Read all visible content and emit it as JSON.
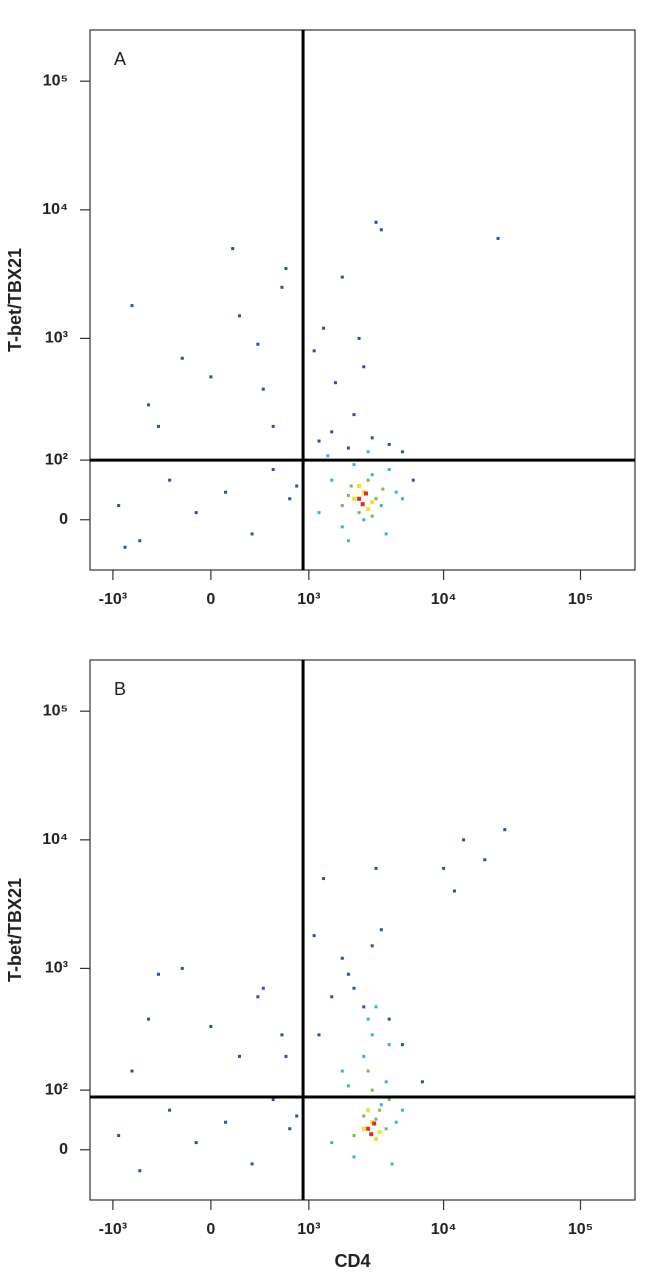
{
  "chart_data": [
    {
      "type": "scatter",
      "panel_label": "A",
      "y_label": "T-bet/TBX21",
      "xlim": [
        -1500,
        250000
      ],
      "ylim": [
        -80,
        250000
      ],
      "xticks": [
        {
          "value": -1000,
          "label": "-10³"
        },
        0,
        {
          "value": 1000,
          "label": "10³"
        },
        {
          "value": 10000,
          "label": "10⁴"
        },
        {
          "value": 100000,
          "label": "10⁵"
        }
      ],
      "yticks": [
        0,
        {
          "value": 100,
          "label": "10²"
        },
        {
          "value": 1000,
          "label": "10³"
        },
        {
          "value": 10000,
          "label": "10⁴"
        },
        {
          "value": 100000,
          "label": "10⁵"
        }
      ],
      "quadrant_gates": {
        "x": 900,
        "y": 100
      },
      "series": [
        {
          "color": "#2a4ea6",
          "x": [
            -900,
            -600,
            -300,
            -100,
            100,
            300,
            500,
            700,
            800,
            1200,
            1500,
            2000,
            3000,
            4000,
            5000,
            6000,
            -500,
            -200,
            200,
            400,
            600,
            1100,
            1800,
            2600,
            3500,
            -700,
            -400,
            0,
            350,
            650,
            1300,
            2200,
            3200,
            -800,
            150,
            500,
            1600,
            2400,
            25000
          ],
          "y": [
            20,
            -30,
            60,
            10,
            40,
            -20,
            80,
            30,
            50,
            150,
            180,
            130,
            160,
            140,
            120,
            60,
            300,
            700,
            1500,
            400,
            2500,
            800,
            3000,
            600,
            7000,
            1800,
            200,
            500,
            900,
            3500,
            1200,
            250,
            8000,
            -40,
            5000,
            200,
            450,
            1000,
            6000
          ]
        },
        {
          "color": "#2fb6d9",
          "x": [
            1200,
            1500,
            1800,
            2200,
            2600,
            3000,
            3500,
            4000,
            4500,
            1400,
            2000,
            2800,
            3800,
            5000
          ],
          "y": [
            10,
            60,
            -10,
            90,
            0,
            70,
            20,
            80,
            40,
            110,
            -30,
            120,
            -20,
            30
          ]
        },
        {
          "color": "#6cc04a",
          "x": [
            1800,
            2100,
            2400,
            2800,
            3200,
            3600,
            2000,
            3000
          ],
          "y": [
            20,
            50,
            10,
            60,
            30,
            45,
            35,
            5
          ]
        },
        {
          "color": "#f2e02a",
          "x": [
            2200,
            2600,
            3000,
            2400,
            2800
          ],
          "y": [
            30,
            40,
            25,
            50,
            15
          ]
        },
        {
          "color": "#e8281e",
          "x": [
            2400,
            2700,
            2550
          ],
          "y": [
            30,
            38,
            22
          ]
        }
      ]
    },
    {
      "type": "scatter",
      "panel_label": "B",
      "y_label": "T-bet/TBX21",
      "x_label": "CD4",
      "xlim": [
        -1500,
        250000
      ],
      "ylim": [
        -80,
        250000
      ],
      "xticks": [
        {
          "value": -1000,
          "label": "-10³"
        },
        0,
        {
          "value": 1000,
          "label": "10³"
        },
        {
          "value": 10000,
          "label": "10⁴"
        },
        {
          "value": 100000,
          "label": "10⁵"
        }
      ],
      "yticks": [
        0,
        {
          "value": 100,
          "label": "10²"
        },
        {
          "value": 1000,
          "label": "10³"
        },
        {
          "value": 10000,
          "label": "10⁴"
        },
        {
          "value": 100000,
          "label": "10⁵"
        }
      ],
      "quadrant_gates": {
        "x": 900,
        "y": 85
      },
      "series": [
        {
          "color": "#2a4ea6",
          "x": [
            -900,
            -600,
            -300,
            -100,
            100,
            300,
            500,
            700,
            800,
            1200,
            1500,
            2000,
            3000,
            4000,
            5000,
            7000,
            -500,
            -200,
            200,
            400,
            600,
            1100,
            1800,
            2600,
            3500,
            -700,
            -400,
            0,
            350,
            650,
            1300,
            2200,
            3200,
            10000,
            12000,
            14000,
            20000,
            28000
          ],
          "y": [
            20,
            -30,
            60,
            10,
            40,
            -20,
            80,
            30,
            50,
            300,
            600,
            900,
            1500,
            400,
            250,
            120,
            400,
            1000,
            200,
            700,
            300,
            1800,
            1200,
            500,
            2000,
            150,
            900,
            350,
            600,
            200,
            5000,
            700,
            6000,
            6000,
            4000,
            10000,
            7000,
            12000
          ]
        },
        {
          "color": "#2fb6d9",
          "x": [
            1500,
            1800,
            2200,
            2600,
            3000,
            3500,
            4000,
            4500,
            2000,
            2800,
            3800,
            5000,
            3200,
            4200
          ],
          "y": [
            10,
            150,
            -10,
            200,
            300,
            70,
            250,
            40,
            110,
            400,
            120,
            60,
            500,
            -20
          ]
        },
        {
          "color": "#6cc04a",
          "x": [
            2200,
            2600,
            3000,
            3400,
            3800,
            2800,
            3200,
            4000
          ],
          "y": [
            20,
            50,
            100,
            60,
            30,
            150,
            45,
            80
          ]
        },
        {
          "color": "#f2e02a",
          "x": [
            2600,
            3000,
            3400,
            2800,
            3200
          ],
          "y": [
            30,
            40,
            25,
            60,
            15
          ]
        },
        {
          "color": "#e8281e",
          "x": [
            2800,
            3100,
            2950
          ],
          "y": [
            30,
            38,
            22
          ]
        }
      ]
    }
  ]
}
